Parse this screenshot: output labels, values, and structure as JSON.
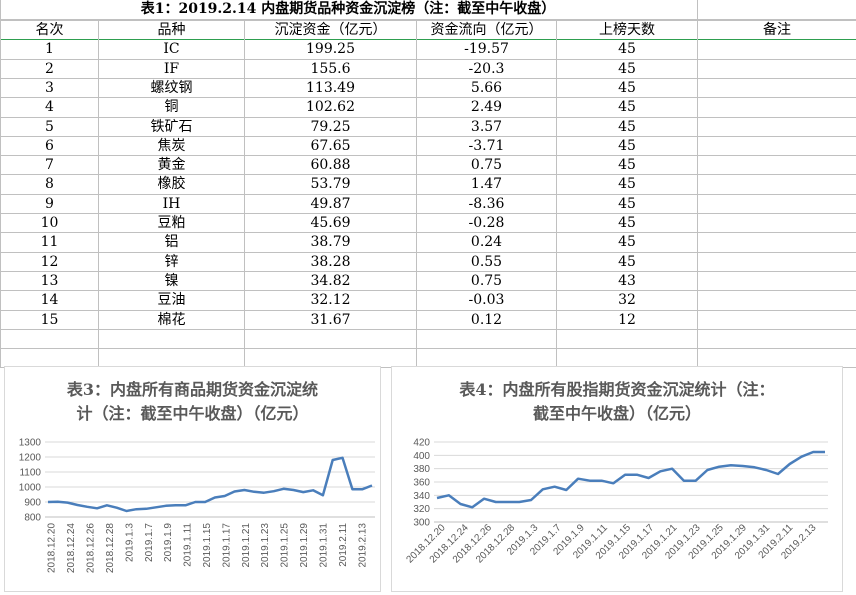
{
  "sheet": {
    "title": "表1：2019.2.14 内盘期货品种资金沉淀榜（注：截至中午收盘）",
    "headers": [
      "名次",
      "品种",
      "沉淀资金（亿元）",
      "资金流向（亿元）",
      "上榜天数",
      "备注"
    ],
    "rows": [
      [
        "1",
        "IC",
        "199.25",
        "-19.57",
        "45",
        ""
      ],
      [
        "2",
        "IF",
        "155.6",
        "-20.3",
        "45",
        ""
      ],
      [
        "3",
        "螺纹钢",
        "113.49",
        "5.66",
        "45",
        ""
      ],
      [
        "4",
        "铜",
        "102.62",
        "2.49",
        "45",
        ""
      ],
      [
        "5",
        "铁矿石",
        "79.25",
        "3.57",
        "45",
        ""
      ],
      [
        "6",
        "焦炭",
        "67.65",
        "-3.71",
        "45",
        ""
      ],
      [
        "7",
        "黄金",
        "60.88",
        "0.75",
        "45",
        ""
      ],
      [
        "8",
        "橡胶",
        "53.79",
        "1.47",
        "45",
        ""
      ],
      [
        "9",
        "IH",
        "49.87",
        "-8.36",
        "45",
        ""
      ],
      [
        "10",
        "豆粕",
        "45.69",
        "-0.28",
        "45",
        ""
      ],
      [
        "11",
        "铝",
        "38.79",
        "0.24",
        "45",
        ""
      ],
      [
        "12",
        "锌",
        "38.28",
        "0.55",
        "45",
        ""
      ],
      [
        "13",
        "镍",
        "34.82",
        "0.75",
        "43",
        ""
      ],
      [
        "14",
        "豆油",
        "32.12",
        "-0.03",
        "32",
        ""
      ],
      [
        "15",
        "棉花",
        "31.67",
        "0.12",
        "12",
        ""
      ]
    ],
    "line_color": "#4a7ebb",
    "grid_color": "#c0c0c0",
    "header_divider_color": "#2e9e4f"
  },
  "chart_data": [
    {
      "type": "line",
      "title": "表3：内盘所有商品期货资金沉淀统计（注：截至中午收盘）（亿元）",
      "title_lines": [
        "表3：内盘所有商品期货资金沉淀统",
        "计（注：截至中午收盘）（亿元）"
      ],
      "ylim": [
        800,
        1300
      ],
      "yticks": [
        800,
        900,
        1000,
        1100,
        1200,
        1300
      ],
      "x_labels": [
        "2018.12.20",
        "2018.12.24",
        "2018.12.26",
        "2018.12.28",
        "2019.1.3",
        "2019.1.7",
        "2019.1.9",
        "2019.1.11",
        "2019.1.15",
        "2019.1.17",
        "2019.1.21",
        "2019.1.23",
        "2019.1.25",
        "2019.1.29",
        "2019.1.31",
        "2019.2.11",
        "2019.2.13"
      ],
      "values": [
        900,
        902,
        896,
        880,
        868,
        858,
        878,
        862,
        840,
        852,
        855,
        865,
        875,
        878,
        878,
        900,
        900,
        930,
        940,
        970,
        980,
        968,
        962,
        972,
        988,
        980,
        966,
        978,
        945,
        1180,
        1195,
        985,
        985,
        1010
      ],
      "color": "#4a7ebb",
      "grid": true
    },
    {
      "type": "line",
      "title": "表4：内盘所有股指期货资金沉淀统计（注：截至中午收盘）（亿元）",
      "title_lines": [
        "表4：内盘所有股指期货资金沉淀统计（注：",
        "截至中午收盘）（亿元）"
      ],
      "ylim": [
        300,
        420
      ],
      "yticks": [
        300,
        320,
        340,
        360,
        380,
        400,
        420
      ],
      "x_labels": [
        "2018.12.20",
        "2018.12.24",
        "2018.12.26",
        "2018.12.28",
        "2019.1.3",
        "2019.1.7",
        "2019.1.9",
        "2019.1.11",
        "2019.1.15",
        "2019.1.17",
        "2019.1.21",
        "2019.1.23",
        "2019.1.25",
        "2019.1.29",
        "2019.1.31",
        "2019.2.11",
        "2019.2.13"
      ],
      "values": [
        336,
        340,
        327,
        322,
        335,
        330,
        330,
        330,
        333,
        349,
        353,
        348,
        365,
        362,
        362,
        358,
        371,
        371,
        366,
        376,
        380,
        362,
        362,
        378,
        383,
        385,
        384,
        382,
        378,
        372,
        387,
        398,
        405,
        405
      ],
      "color": "#4a7ebb",
      "grid": true
    }
  ]
}
